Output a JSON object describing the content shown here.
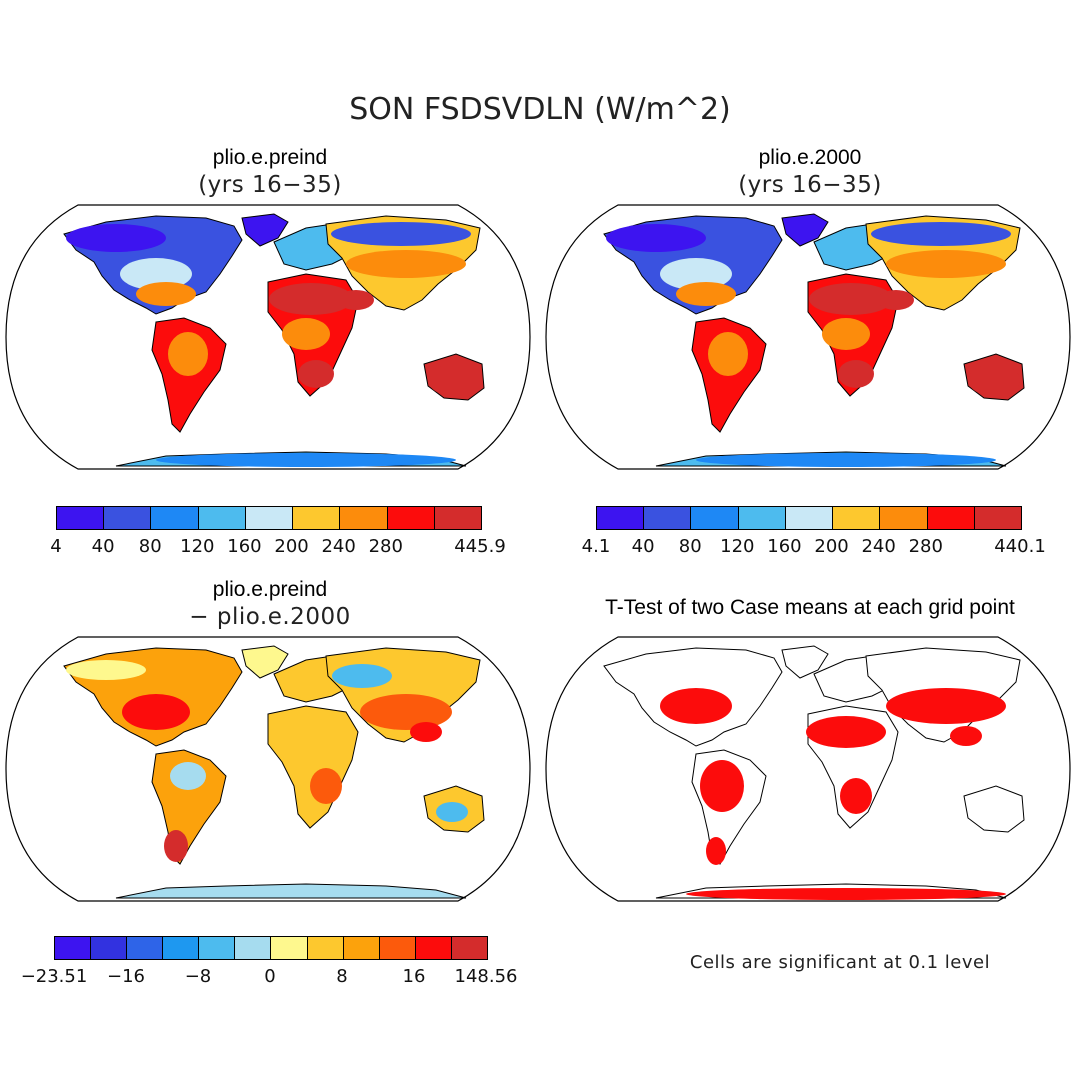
{
  "title": "SON FSDSVDLN (W/m^2)",
  "panels": [
    {
      "id": "preind",
      "title": "plio.e.preind",
      "subtitle": "(yrs 16−35)",
      "colorbar": {
        "colors": [
          "#3d14f0",
          "#3a52e0",
          "#1e88f5",
          "#4dbbee",
          "#c9e8f6",
          "#fdc82e",
          "#fc8c0c",
          "#fc0c0c",
          "#d42c2c"
        ],
        "ticks": [
          "4",
          "40",
          "80",
          "120",
          "160",
          "200",
          "240",
          "280",
          "445.9"
        ]
      }
    },
    {
      "id": "y2000",
      "title": "plio.e.2000",
      "subtitle": "(yrs 16−35)",
      "colorbar": {
        "colors": [
          "#3d14f0",
          "#3a52e0",
          "#1e88f5",
          "#4dbbee",
          "#c9e8f6",
          "#fdc82e",
          "#fc8c0c",
          "#fc0c0c",
          "#d42c2c"
        ],
        "ticks": [
          "4.1",
          "40",
          "80",
          "120",
          "160",
          "200",
          "240",
          "280",
          "440.1"
        ]
      }
    },
    {
      "id": "diff",
      "title": "plio.e.preind",
      "subtitle": "− plio.e.2000",
      "colorbar": {
        "colors": [
          "#3d14f0",
          "#3232e0",
          "#2e64e8",
          "#1e98f0",
          "#4dbbee",
          "#a6dcef",
          "#fef88e",
          "#fdc82e",
          "#fca20c",
          "#fc5a0c",
          "#fc0c0c",
          "#d42c2c"
        ],
        "ticks": [
          "−23.51",
          "−16",
          "−8",
          "0",
          "8",
          "16",
          "148.56"
        ]
      }
    },
    {
      "id": "ttest",
      "title": "T-Test of two Case means at each grid point",
      "note": "Cells are significant at 0.1 level",
      "colors": {
        "significant": "#fc0c0c"
      }
    }
  ]
}
